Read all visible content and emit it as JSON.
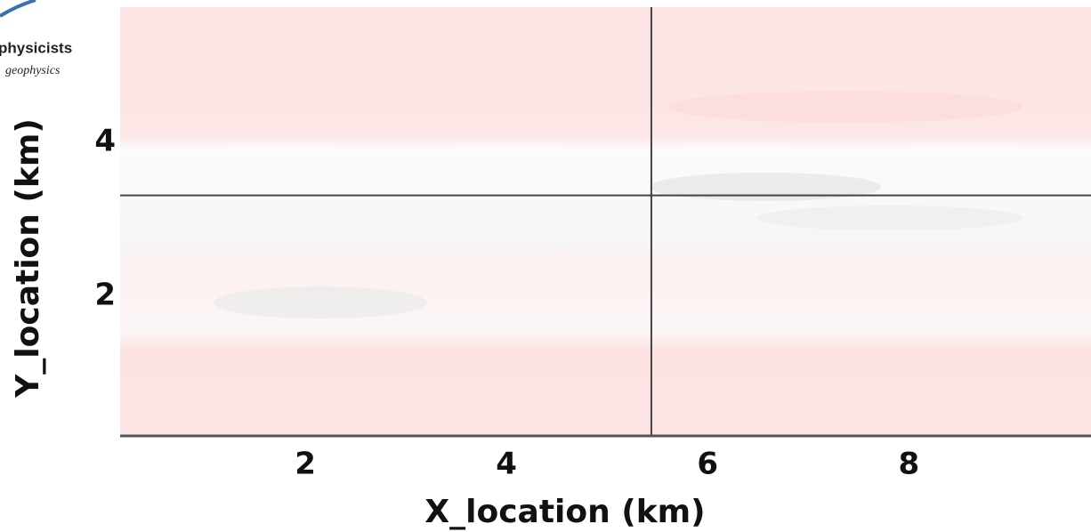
{
  "chart_data": {
    "type": "image",
    "logo": {
      "name": "physicists",
      "tagline": "geophysics"
    },
    "xlabel": "X_location (km)",
    "ylabel": "Y_location (km)",
    "xlim": [
      0.16,
      9.81
    ],
    "ylim": [
      0.18,
      5.76
    ],
    "xticks": [
      2,
      4,
      6,
      8
    ],
    "yticks": [
      2,
      4
    ],
    "crosshair": {
      "x": 5.44,
      "y": 3.31,
      "color": "#444444"
    },
    "axis_color": "#555555"
  }
}
